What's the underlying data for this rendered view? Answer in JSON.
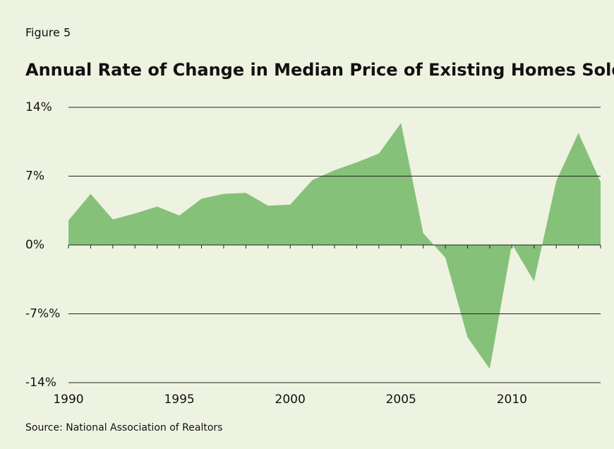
{
  "chart_data": {
    "type": "area",
    "label": "Figure 5",
    "title": "Annual Rate of Change in Median Price of Existing Homes Sold",
    "source": "Source: National Association of Realtors",
    "x": [
      1990,
      1991,
      1992,
      1993,
      1994,
      1995,
      1996,
      1997,
      1998,
      1999,
      2000,
      2001,
      2002,
      2003,
      2004,
      2005,
      2006,
      2007,
      2008,
      2009,
      2010,
      2011,
      2012,
      2013,
      2014
    ],
    "values": [
      2.5,
      5.2,
      2.6,
      3.2,
      3.9,
      3.0,
      4.7,
      5.2,
      5.3,
      4.0,
      4.1,
      6.6,
      7.6,
      8.4,
      9.3,
      12.4,
      1.2,
      -1.3,
      -9.4,
      -12.6,
      0.1,
      -3.7,
      6.5,
      11.4,
      6.4
    ],
    "color": "#86c17a",
    "xlim": [
      1990,
      2014
    ],
    "xticks": [
      1990,
      1995,
      2000,
      2005,
      2010
    ],
    "ylim": [
      -14,
      14
    ],
    "yticks": [
      {
        "value": -14,
        "label": "-14%"
      },
      {
        "value": -7,
        "label": "-7%%"
      },
      {
        "value": 0,
        "label": "0%"
      },
      {
        "value": 7,
        "label": "7%"
      },
      {
        "value": 14,
        "label": "14%"
      }
    ],
    "grid": true
  }
}
